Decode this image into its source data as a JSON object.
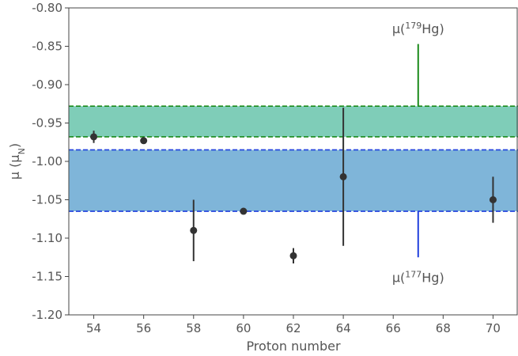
{
  "chart_data": {
    "type": "scatter",
    "xlabel": "Proton number",
    "ylabel_main": "μ (μ",
    "ylabel_sub": "N",
    "ylabel_close": ")",
    "xlim": [
      53,
      71
    ],
    "ylim": [
      -1.2,
      -0.8
    ],
    "xticks": [
      54,
      56,
      58,
      60,
      62,
      64,
      66,
      68,
      70
    ],
    "yticks": [
      -1.2,
      -1.15,
      -1.1,
      -1.05,
      -1.0,
      -0.95,
      -0.9,
      -0.85,
      -0.8
    ],
    "ytick_labels": [
      "-1.20",
      "-1.15",
      "-1.10",
      "-1.05",
      "-1.00",
      "-0.95",
      "-0.90",
      "-0.85",
      "-0.80"
    ],
    "grid": false,
    "points": [
      {
        "x": 54,
        "y": -0.968,
        "err_lo": 0.008,
        "err_hi": 0.008
      },
      {
        "x": 56,
        "y": -0.973,
        "err_lo": 0.004,
        "err_hi": 0.004
      },
      {
        "x": 58,
        "y": -1.09,
        "err_lo": 0.04,
        "err_hi": 0.04
      },
      {
        "x": 60,
        "y": -1.065,
        "err_lo": 0.003,
        "err_hi": 0.003
      },
      {
        "x": 62,
        "y": -1.123,
        "err_lo": 0.01,
        "err_hi": 0.01
      },
      {
        "x": 64,
        "y": -1.02,
        "err_lo": 0.09,
        "err_hi": 0.09
      },
      {
        "x": 70,
        "y": -1.05,
        "err_lo": 0.03,
        "err_hi": 0.03
      }
    ],
    "bands": [
      {
        "ymin": -0.968,
        "ymax": -0.928,
        "fill": "#7fcdb8",
        "line_color": "#1a8a1a"
      },
      {
        "ymin": -1.065,
        "ymax": -0.985,
        "fill": "#7fb5d9",
        "line_color": "#1f3fdd"
      }
    ],
    "markers": [
      {
        "x": 67,
        "y_from": -0.928,
        "y_to": -0.847,
        "color": "#1a8a1a",
        "label_pre": "μ(",
        "label_sup": "179",
        "label_post": "Hg)",
        "label_y": -0.833
      },
      {
        "x": 67,
        "y_from": -1.065,
        "y_to": -1.125,
        "color": "#1f3fdd",
        "label_pre": "μ(",
        "label_sup": "177",
        "label_post": "Hg)",
        "label_y": -1.157
      }
    ],
    "point_color": "#333333"
  }
}
